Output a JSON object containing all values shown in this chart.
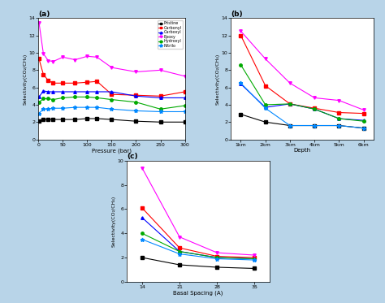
{
  "subplot_a": {
    "title": "(a)",
    "xlabel": "Pressure (bar)",
    "ylabel": "Selectivity(CO₂/CH₄)",
    "xlim": [
      0,
      300
    ],
    "ylim": [
      0,
      14
    ],
    "yticks": [
      0,
      2,
      4,
      6,
      8,
      10,
      12,
      14
    ],
    "xticks": [
      0,
      50,
      100,
      150,
      200,
      250,
      300
    ],
    "series": {
      "Pristine": {
        "color": "#000000",
        "marker": "s",
        "x": [
          1,
          10,
          20,
          30,
          50,
          75,
          100,
          120,
          150,
          200,
          250,
          300
        ],
        "y": [
          2.1,
          2.3,
          2.3,
          2.3,
          2.3,
          2.3,
          2.4,
          2.4,
          2.3,
          2.1,
          2.0,
          2.0
        ]
      },
      "Carbonyl": {
        "color": "#ff0000",
        "marker": "s",
        "x": [
          1,
          10,
          20,
          30,
          50,
          75,
          100,
          120,
          150,
          200,
          250,
          300
        ],
        "y": [
          9.3,
          7.5,
          6.8,
          6.5,
          6.5,
          6.5,
          6.6,
          6.7,
          5.2,
          5.1,
          5.0,
          5.5
        ]
      },
      "Carboxyl": {
        "color": "#0000ff",
        "marker": "^",
        "x": [
          1,
          10,
          20,
          30,
          50,
          75,
          100,
          120,
          150,
          200,
          250,
          300
        ],
        "y": [
          4.9,
          5.6,
          5.5,
          5.5,
          5.5,
          5.5,
          5.5,
          5.5,
          5.5,
          5.0,
          4.8,
          4.8
        ]
      },
      "Epoxy": {
        "color": "#ff00ff",
        "marker": "v",
        "x": [
          1,
          10,
          20,
          30,
          50,
          75,
          100,
          120,
          150,
          200,
          250,
          300
        ],
        "y": [
          13.5,
          9.9,
          9.1,
          9.0,
          9.5,
          9.2,
          9.6,
          9.5,
          8.3,
          7.8,
          8.0,
          7.3
        ]
      },
      "Hydroxyl": {
        "color": "#00aa00",
        "marker": "o",
        "x": [
          1,
          10,
          20,
          30,
          50,
          75,
          100,
          120,
          150,
          200,
          250,
          300
        ],
        "y": [
          4.3,
          4.7,
          4.7,
          4.6,
          4.8,
          4.9,
          4.9,
          4.8,
          4.6,
          4.3,
          3.5,
          3.9
        ]
      },
      "Nitrilo": {
        "color": "#0088ff",
        "marker": "*",
        "x": [
          1,
          10,
          20,
          30,
          50,
          75,
          100,
          120,
          150,
          200,
          250,
          300
        ],
        "y": [
          3.0,
          3.5,
          3.5,
          3.6,
          3.6,
          3.7,
          3.7,
          3.7,
          3.5,
          3.3,
          3.2,
          3.2
        ]
      }
    }
  },
  "subplot_b": {
    "title": "(b)",
    "xlabel": "Depth",
    "ylabel": "Selectivity(CO₂/CH₄)",
    "xlim_labels": [
      "1km",
      "2km",
      "3km",
      "4km",
      "5km",
      "6km"
    ],
    "ylim": [
      0,
      14
    ],
    "yticks": [
      0,
      2,
      4,
      6,
      8,
      10,
      12,
      14
    ],
    "series": {
      "Pristine": {
        "color": "#000000",
        "marker": "s",
        "y": [
          2.9,
          2.0,
          1.6,
          1.6,
          1.6,
          1.3
        ]
      },
      "Carbonyl": {
        "color": "#ff0000",
        "marker": "s",
        "y": [
          12.0,
          6.2,
          4.1,
          3.6,
          3.1,
          3.0
        ]
      },
      "Carboxyl": {
        "color": "#0000ff",
        "marker": "^",
        "y": [
          6.4,
          3.7,
          4.1,
          3.5,
          2.4,
          2.2
        ]
      },
      "Epoxy": {
        "color": "#ff00ff",
        "marker": "v",
        "y": [
          12.5,
          9.3,
          6.5,
          4.8,
          4.5,
          3.4
        ]
      },
      "Hydroxyl": {
        "color": "#00aa00",
        "marker": "o",
        "y": [
          8.6,
          4.0,
          4.1,
          3.5,
          2.4,
          2.1
        ]
      },
      "Nitrilo": {
        "color": "#0088ff",
        "marker": "*",
        "y": [
          6.5,
          3.6,
          1.6,
          1.6,
          1.6,
          1.3
        ]
      }
    }
  },
  "subplot_c": {
    "title": "(c)",
    "xlabel": "Basal Spacing (A)",
    "ylabel": "Selectivity(CO₂/CH₄)",
    "xlim_labels": [
      "14",
      "21",
      "28",
      "35"
    ],
    "ylim": [
      0,
      10
    ],
    "yticks": [
      0,
      2,
      4,
      6,
      8,
      10
    ],
    "series": {
      "Pristine": {
        "color": "#000000",
        "marker": "s",
        "y": [
          2.0,
          1.4,
          1.2,
          1.1
        ]
      },
      "Carbonyl": {
        "color": "#ff0000",
        "marker": "s",
        "y": [
          6.1,
          2.8,
          2.1,
          2.0
        ]
      },
      "Carboxyl": {
        "color": "#0000ff",
        "marker": "^",
        "y": [
          5.3,
          2.5,
          2.0,
          1.9
        ]
      },
      "Epoxy": {
        "color": "#ff00ff",
        "marker": "v",
        "y": [
          9.4,
          3.7,
          2.4,
          2.2
        ]
      },
      "Hydroxyl": {
        "color": "#00aa00",
        "marker": "o",
        "y": [
          4.0,
          2.5,
          2.0,
          1.9
        ]
      },
      "Nitrilo": {
        "color": "#0088ff",
        "marker": "*",
        "y": [
          3.5,
          2.3,
          1.9,
          1.8
        ]
      }
    }
  },
  "legend_order": [
    "Pristine",
    "Carbonyl",
    "Carboxyl",
    "Epoxy",
    "Hydroxyl",
    "Nitrilo"
  ],
  "figure_bg": "#b8d4e8"
}
